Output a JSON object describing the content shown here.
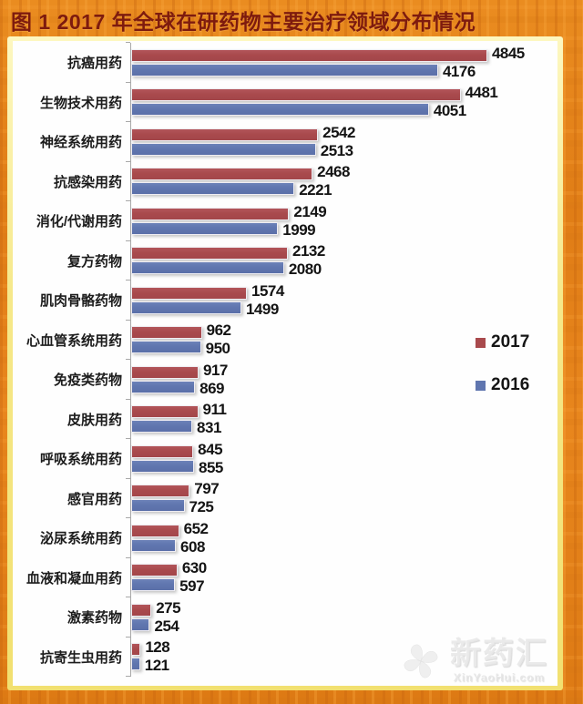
{
  "title": "图 1   2017 年全球在研药物主要治疗领域分布情况",
  "chart_data": {
    "type": "bar",
    "orientation": "horizontal",
    "title": "2017 年全球在研药物主要治疗领域分布情况",
    "xlabel": "",
    "ylabel": "",
    "axis_max": 5800,
    "grid": false,
    "legend_position": "right",
    "categories": [
      "抗癌用药",
      "生物技术用药",
      "神经系统用药",
      "抗感染用药",
      "消化/代谢用药",
      "复方药物",
      "肌肉骨骼药物",
      "心血管系统用药",
      "免疫类药物",
      "皮肤用药",
      "呼吸系统用药",
      "感官用药",
      "泌尿系统用药",
      "血液和凝血用药",
      "激素药物",
      "抗寄生虫用药"
    ],
    "series": [
      {
        "name": "2017",
        "color": "#a94a4d",
        "values": [
          4845,
          4481,
          2542,
          2468,
          2149,
          2132,
          1574,
          962,
          917,
          911,
          845,
          797,
          652,
          630,
          275,
          128
        ]
      },
      {
        "name": "2016",
        "color": "#6076af",
        "values": [
          4176,
          4051,
          2513,
          2221,
          1999,
          2080,
          1499,
          950,
          869,
          831,
          855,
          725,
          608,
          597,
          254,
          121
        ]
      }
    ]
  },
  "legend": {
    "items": [
      {
        "label": "2017",
        "color": "#a94a4d"
      },
      {
        "label": "2016",
        "color": "#6076af"
      }
    ]
  },
  "watermark": {
    "name": "新药汇",
    "domain": "XinYaoHui.com",
    "icon": "pinwheel-flower-icon"
  },
  "colors": {
    "frame_orange": "#e8861d",
    "inner_border_yellow": "#f6e88a",
    "panel_background": "#fefefe",
    "title_text": "#7e1b0e",
    "bar_2017": "#a94a4d",
    "bar_2016": "#6076af",
    "axis_line": "#a8a8a8",
    "label_text": "#1c1c1c"
  }
}
